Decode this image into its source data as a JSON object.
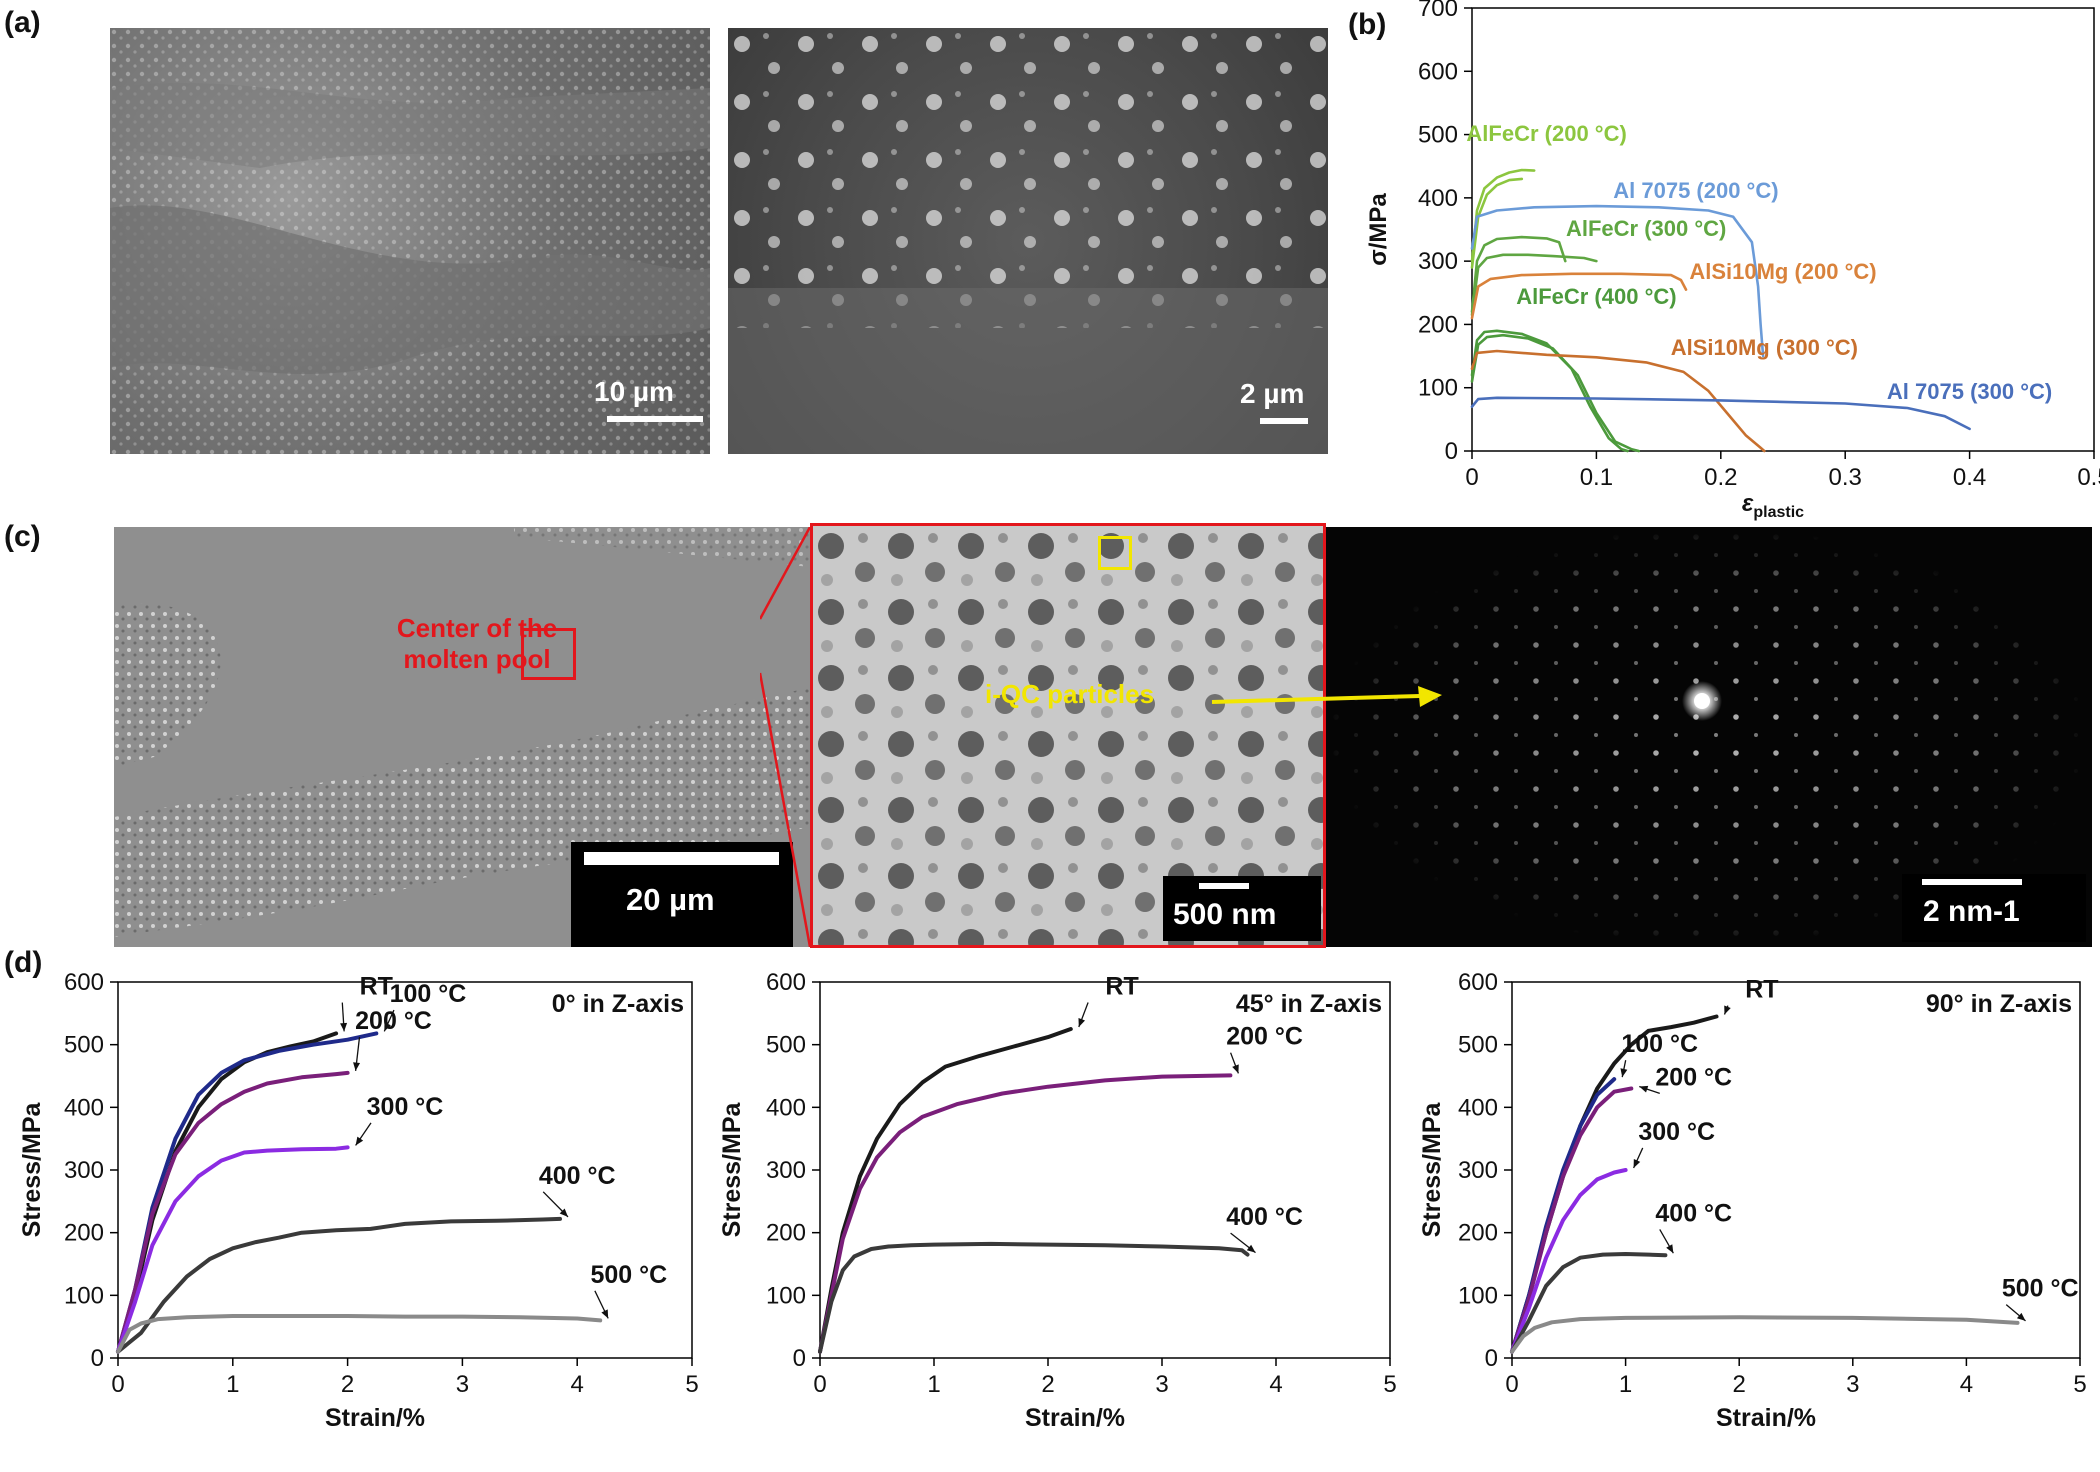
{
  "panel_labels": {
    "a": "(a)",
    "b": "(b)",
    "c": "(c)",
    "d": "(d)"
  },
  "micrographs": {
    "a_left_scale": "10 µm",
    "a_right_scale": "2 µm",
    "c_left_scale": "20 µm",
    "c_left_annotation_line1": "Center of the",
    "c_left_annotation_line2": "molten pool",
    "c_mid_scale": "500 nm",
    "c_mid_annotation": "i-QC particles",
    "c_right_scale": "2 nm-1",
    "colors": {
      "annotation_red": "#e3161c",
      "annotation_yellow": "#f2e600"
    }
  },
  "chart_data": [
    {
      "id": "b",
      "type": "line",
      "xlabel_main": "ε",
      "xlabel_sub": "plastic",
      "ylabel": "σ/MPa",
      "xlim": [
        0,
        0.5
      ],
      "ylim": [
        0,
        700
      ],
      "xticks": [
        "0",
        "0.1",
        "0.2",
        "0.3",
        "0.4",
        "0.5"
      ],
      "yticks": [
        "0",
        "100",
        "200",
        "300",
        "400",
        "500",
        "600",
        "700"
      ],
      "series": [
        {
          "name": "AlFeCr (200 °C)",
          "color": "#8cc63f",
          "label_pos": [
            0.06,
            490
          ],
          "x": [
            0,
            0.004,
            0.01,
            0.02,
            0.03,
            0.04,
            0.05
          ],
          "y": [
            300,
            380,
            415,
            432,
            440,
            444,
            443
          ]
        },
        {
          "x": [
            0,
            0.005,
            0.012,
            0.02,
            0.03,
            0.04
          ],
          "y": [
            290,
            370,
            405,
            420,
            428,
            430
          ],
          "color": "#8cc63f"
        },
        {
          "name": "Al 7075 (200 °C)",
          "color": "#6b9bd8",
          "label_pos": [
            0.18,
            400
          ],
          "x": [
            0,
            0.004,
            0.02,
            0.05,
            0.1,
            0.15,
            0.19,
            0.21,
            0.225,
            0.23,
            0.232,
            0.234
          ],
          "y": [
            320,
            370,
            380,
            385,
            387,
            385,
            380,
            370,
            330,
            260,
            200,
            150
          ]
        },
        {
          "name": "AlFeCr (300 °C)",
          "color": "#5fa642",
          "label_pos": [
            0.14,
            340
          ],
          "x": [
            0,
            0.004,
            0.01,
            0.02,
            0.04,
            0.06,
            0.07,
            0.075
          ],
          "y": [
            220,
            300,
            325,
            335,
            338,
            336,
            330,
            300
          ]
        },
        {
          "x": [
            0,
            0.005,
            0.012,
            0.025,
            0.045,
            0.065,
            0.09,
            0.1
          ],
          "y": [
            215,
            290,
            305,
            310,
            310,
            308,
            305,
            300
          ],
          "color": "#5fa642"
        },
        {
          "name": "AlSi10Mg (200 °C)",
          "color": "#d9823b",
          "label_pos": [
            0.25,
            272
          ],
          "x": [
            0,
            0.005,
            0.015,
            0.04,
            0.08,
            0.12,
            0.16,
            0.168,
            0.172
          ],
          "y": [
            210,
            260,
            272,
            278,
            280,
            280,
            278,
            270,
            255
          ]
        },
        {
          "name": "AlFeCr (400 °C)",
          "color": "#4c9a3c",
          "label_pos": [
            0.1,
            232
          ],
          "x": [
            0,
            0.004,
            0.01,
            0.02,
            0.04,
            0.06,
            0.08,
            0.095,
            0.11,
            0.12,
            0.125
          ],
          "y": [
            120,
            175,
            188,
            190,
            185,
            170,
            130,
            70,
            20,
            3,
            0
          ]
        },
        {
          "x": [
            0,
            0.005,
            0.012,
            0.025,
            0.045,
            0.065,
            0.085,
            0.1,
            0.115,
            0.128,
            0.134
          ],
          "y": [
            110,
            168,
            180,
            183,
            178,
            162,
            120,
            60,
            15,
            3,
            0
          ],
          "color": "#4c9a3c"
        },
        {
          "name": "AlSi10Mg (300 °C)",
          "color": "#c8702e",
          "label_pos": [
            0.235,
            152
          ],
          "x": [
            0,
            0.004,
            0.02,
            0.06,
            0.1,
            0.14,
            0.17,
            0.19,
            0.205,
            0.22,
            0.232,
            0.235
          ],
          "y": [
            130,
            155,
            158,
            152,
            148,
            140,
            125,
            95,
            60,
            25,
            5,
            0
          ]
        },
        {
          "name": "Al 7075 (300 °C)",
          "color": "#4a6fbb",
          "label_pos": [
            0.4,
            82
          ],
          "x": [
            0,
            0.005,
            0.02,
            0.1,
            0.2,
            0.3,
            0.35,
            0.38,
            0.4
          ],
          "y": [
            70,
            82,
            84,
            83,
            80,
            75,
            68,
            55,
            35
          ]
        }
      ]
    },
    {
      "id": "d1",
      "type": "line",
      "title": "0° in Z-axis",
      "xlabel": "Strain/%",
      "ylabel": "Stress/MPa",
      "xlim": [
        0,
        5
      ],
      "ylim": [
        0,
        600
      ],
      "xticks": [
        "0",
        "1",
        "2",
        "3",
        "4",
        "5"
      ],
      "yticks": [
        "0",
        "100",
        "200",
        "300",
        "400",
        "500",
        "600"
      ],
      "series": [
        {
          "name": "RT",
          "color": "#1a1a1a",
          "x": [
            0,
            0.15,
            0.3,
            0.5,
            0.7,
            0.9,
            1.1,
            1.3,
            1.5,
            1.7,
            1.9
          ],
          "y": [
            10,
            100,
            220,
            330,
            400,
            445,
            472,
            488,
            497,
            505,
            518
          ],
          "label_pos": [
            2.25,
            580
          ],
          "arrow_to": [
            1.9,
            518
          ]
        },
        {
          "name": "100 °C",
          "color": "#1f2a8a",
          "x": [
            0,
            0.15,
            0.3,
            0.5,
            0.7,
            0.9,
            1.1,
            1.4,
            1.7,
            2.0,
            2.25
          ],
          "y": [
            10,
            110,
            240,
            350,
            420,
            455,
            475,
            490,
            500,
            508,
            518
          ],
          "label_pos": [
            2.7,
            568
          ],
          "arrow_to": [
            2.25,
            518
          ]
        },
        {
          "name": "200 °C",
          "color": "#7a1f7a",
          "x": [
            0,
            0.15,
            0.3,
            0.5,
            0.7,
            0.9,
            1.1,
            1.3,
            1.6,
            1.9,
            2.0
          ],
          "y": [
            10,
            110,
            230,
            325,
            375,
            405,
            425,
            438,
            448,
            453,
            455
          ],
          "label_pos": [
            2.4,
            525
          ],
          "arrow_to": [
            2.0,
            455
          ]
        },
        {
          "name": "300 °C",
          "color": "#8b2be2",
          "x": [
            0,
            0.15,
            0.3,
            0.5,
            0.7,
            0.9,
            1.1,
            1.3,
            1.6,
            1.9,
            2.0
          ],
          "y": [
            10,
            90,
            180,
            250,
            290,
            315,
            328,
            331,
            333,
            334,
            336
          ],
          "label_pos": [
            2.5,
            388
          ],
          "arrow_to": [
            2.0,
            336
          ]
        },
        {
          "name": "400 °C",
          "color": "#3a3a3a",
          "x": [
            0,
            0.2,
            0.4,
            0.6,
            0.8,
            1.0,
            1.2,
            1.4,
            1.6,
            1.9,
            2.2,
            2.5,
            2.9,
            3.3,
            3.7,
            3.85
          ],
          "y": [
            10,
            40,
            90,
            130,
            158,
            175,
            185,
            192,
            200,
            204,
            206,
            214,
            218,
            219,
            221,
            222
          ],
          "label_pos": [
            4.0,
            278
          ],
          "arrow_to": [
            3.85,
            222
          ]
        },
        {
          "name": "500 °C",
          "color": "#8a8a8a",
          "x": [
            0,
            0.1,
            0.2,
            0.35,
            0.6,
            1.0,
            1.5,
            2.0,
            2.5,
            3.0,
            3.5,
            4.0,
            4.2
          ],
          "y": [
            10,
            45,
            55,
            62,
            65,
            67,
            67,
            67,
            66,
            66,
            65,
            63,
            60
          ],
          "label_pos": [
            4.45,
            120
          ],
          "arrow_to": [
            4.2,
            60
          ]
        }
      ]
    },
    {
      "id": "d2",
      "type": "line",
      "title": "45° in Z-axis",
      "xlabel": "Strain/%",
      "ylabel": "Stress/MPa",
      "xlim": [
        0,
        5
      ],
      "ylim": [
        0,
        600
      ],
      "xticks": [
        "0",
        "1",
        "2",
        "3",
        "4",
        "5"
      ],
      "yticks": [
        "0",
        "100",
        "200",
        "300",
        "400",
        "500",
        "600"
      ],
      "series": [
        {
          "name": "RT",
          "color": "#1a1a1a",
          "x": [
            0,
            0.1,
            0.2,
            0.35,
            0.5,
            0.7,
            0.9,
            1.1,
            1.4,
            1.7,
            2.0,
            2.2
          ],
          "y": [
            10,
            110,
            200,
            290,
            350,
            405,
            440,
            465,
            482,
            497,
            512,
            525
          ],
          "label_pos": [
            2.65,
            580
          ],
          "arrow_to": [
            2.2,
            525
          ]
        },
        {
          "name": "200 °C",
          "color": "#7a1f7a",
          "x": [
            0,
            0.1,
            0.2,
            0.35,
            0.5,
            0.7,
            0.9,
            1.2,
            1.6,
            2.0,
            2.5,
            3.0,
            3.6
          ],
          "y": [
            10,
            100,
            190,
            270,
            320,
            360,
            385,
            405,
            422,
            433,
            443,
            449,
            451
          ],
          "label_pos": [
            3.9,
            500
          ],
          "arrow_to": [
            3.6,
            451
          ]
        },
        {
          "name": "400 °C",
          "color": "#3a3a3a",
          "x": [
            0,
            0.1,
            0.2,
            0.3,
            0.45,
            0.6,
            0.8,
            1.0,
            1.5,
            2.0,
            2.5,
            3.0,
            3.5,
            3.7,
            3.75
          ],
          "y": [
            10,
            90,
            140,
            162,
            174,
            178,
            180,
            181,
            182,
            181,
            180,
            178,
            175,
            172,
            165
          ],
          "label_pos": [
            3.9,
            212
          ],
          "arrow_to": [
            3.75,
            165
          ]
        }
      ]
    },
    {
      "id": "d3",
      "type": "line",
      "title": "90° in Z-axis",
      "xlabel": "Strain/%",
      "ylabel": "Stress/MPa",
      "xlim": [
        0,
        5
      ],
      "ylim": [
        0,
        600
      ],
      "xticks": [
        "0",
        "1",
        "2",
        "3",
        "4",
        "5"
      ],
      "yticks": [
        "0",
        "100",
        "200",
        "300",
        "400",
        "500",
        "600"
      ],
      "series": [
        {
          "name": "RT",
          "color": "#1a1a1a",
          "x": [
            0,
            0.15,
            0.3,
            0.45,
            0.6,
            0.75,
            0.9,
            1.05,
            1.2,
            1.4,
            1.6,
            1.8
          ],
          "y": [
            10,
            100,
            200,
            290,
            370,
            430,
            470,
            500,
            522,
            528,
            535,
            545
          ],
          "label_pos": [
            2.2,
            575
          ],
          "arrow_to": [
            1.8,
            545
          ]
        },
        {
          "name": "100 °C",
          "color": "#1f2a8a",
          "x": [
            0,
            0.15,
            0.3,
            0.45,
            0.6,
            0.75,
            0.9
          ],
          "y": [
            10,
            100,
            210,
            300,
            370,
            420,
            445
          ],
          "label_pos": [
            1.3,
            488
          ],
          "arrow_to": [
            0.9,
            445
          ]
        },
        {
          "name": "200 °C",
          "color": "#7a1f7a",
          "x": [
            0,
            0.15,
            0.3,
            0.45,
            0.6,
            0.75,
            0.9,
            1.05
          ],
          "y": [
            10,
            95,
            200,
            290,
            355,
            400,
            425,
            430
          ],
          "label_pos": [
            1.6,
            435
          ],
          "arrow_to": [
            1.05,
            430
          ]
        },
        {
          "name": "300 °C",
          "color": "#8b2be2",
          "x": [
            0,
            0.15,
            0.3,
            0.45,
            0.6,
            0.75,
            0.9,
            1.0
          ],
          "y": [
            10,
            80,
            160,
            220,
            260,
            285,
            296,
            300
          ],
          "label_pos": [
            1.45,
            348
          ],
          "arrow_to": [
            1.0,
            300
          ]
        },
        {
          "name": "400 °C",
          "color": "#3a3a3a",
          "x": [
            0,
            0.15,
            0.3,
            0.45,
            0.6,
            0.8,
            1.0,
            1.2,
            1.35
          ],
          "y": [
            10,
            60,
            115,
            145,
            160,
            165,
            166,
            165,
            164
          ],
          "label_pos": [
            1.6,
            218
          ],
          "arrow_to": [
            1.35,
            164
          ]
        },
        {
          "name": "500 °C",
          "color": "#8a8a8a",
          "x": [
            0,
            0.1,
            0.2,
            0.35,
            0.6,
            1.0,
            2.0,
            3.0,
            4.0,
            4.45
          ],
          "y": [
            10,
            35,
            48,
            57,
            62,
            64,
            65,
            64,
            61,
            56
          ],
          "label_pos": [
            4.65,
            98
          ],
          "arrow_to": [
            4.45,
            56
          ]
        }
      ]
    }
  ]
}
